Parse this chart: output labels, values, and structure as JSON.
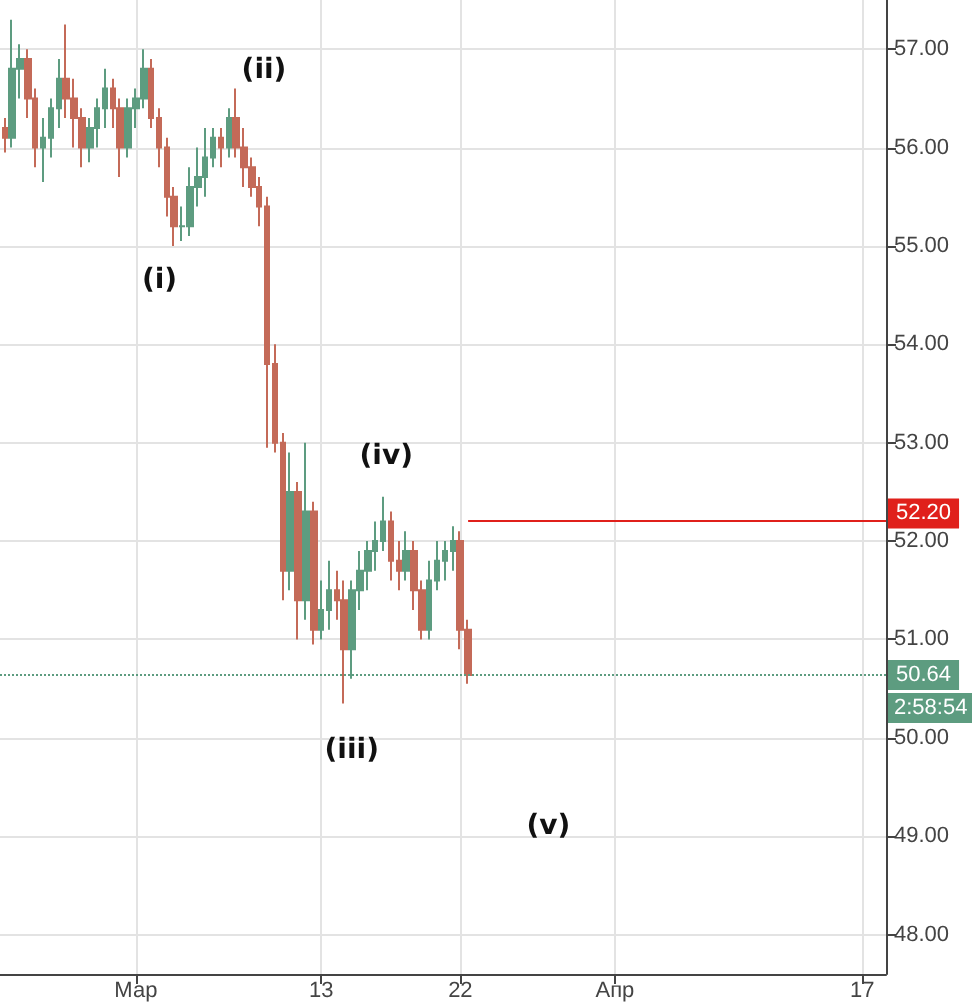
{
  "chart_data": {
    "type": "candlestick",
    "x": [
      "--02-20T12:00",
      "--02-21T00:00",
      "--02-21T12:00",
      "--02-22T00:00",
      "--02-22T12:00",
      "--02-23T00:00",
      "--02-23T12:00",
      "--02-24T00:00",
      "--02-24T12:00",
      "--02-25T00:00",
      "--02-25T12:00",
      "--02-26T00:00",
      "--02-26T12:00",
      "--02-27T00:00",
      "--02-27T12:00",
      "--02-28T00:00",
      "--02-28T12:00",
      "--03-01T00:00",
      "--03-01T12:00",
      "--03-02T00:00",
      "--03-02T12:00",
      "--03-03T00:00",
      "--03-03T12:00",
      "--03-04T00:00",
      "--03-04T12:00",
      "--03-05T00:00",
      "--03-05T12:00",
      "--03-06T00:00",
      "--03-06T12:00",
      "--03-07T00:00",
      "--03-07T12:00",
      "--03-08T00:00",
      "--03-08T12:00",
      "--03-09T00:00",
      "--03-09T12:00",
      "--03-10T00:00",
      "--03-10T12:00",
      "--03-11T00:00",
      "--03-11T12:00",
      "--03-12T00:00",
      "--03-12T12:00",
      "--03-13T00:00",
      "--03-13T12:00",
      "--03-14T00:00",
      "--03-14T12:00",
      "--03-15T00:00",
      "--03-15T12:00",
      "--03-16T00:00",
      "--03-16T12:00",
      "--03-17T00:00",
      "--03-17T12:00",
      "--03-18T00:00",
      "--03-18T12:00",
      "--03-19T00:00",
      "--03-19T12:00",
      "--03-20T00:00",
      "--03-20T12:00",
      "--03-21T00:00",
      "--03-21T12:00",
      "--03-22T00:00",
      "--03-22T12:00"
    ],
    "ohlc": [
      [
        56.2,
        56.3,
        55.95,
        56.1
      ],
      [
        56.1,
        57.3,
        56.0,
        56.8
      ],
      [
        56.8,
        57.05,
        56.5,
        56.9
      ],
      [
        56.9,
        57.0,
        56.3,
        56.5
      ],
      [
        56.5,
        56.6,
        55.8,
        56.0
      ],
      [
        56.0,
        56.3,
        55.65,
        56.1
      ],
      [
        56.1,
        56.5,
        55.9,
        56.4
      ],
      [
        56.4,
        56.9,
        56.2,
        56.7
      ],
      [
        56.7,
        57.25,
        56.3,
        56.5
      ],
      [
        56.5,
        56.7,
        56.0,
        56.3
      ],
      [
        56.3,
        56.4,
        55.8,
        56.0
      ],
      [
        56.0,
        56.3,
        55.85,
        56.2
      ],
      [
        56.2,
        56.5,
        56.0,
        56.4
      ],
      [
        56.4,
        56.8,
        56.2,
        56.6
      ],
      [
        56.6,
        56.7,
        56.2,
        56.4
      ],
      [
        56.4,
        56.5,
        55.7,
        56.0
      ],
      [
        56.0,
        56.5,
        55.9,
        56.4
      ],
      [
        56.4,
        56.6,
        56.2,
        56.5
      ],
      [
        56.5,
        57.0,
        56.4,
        56.8
      ],
      [
        56.8,
        56.9,
        56.2,
        56.3
      ],
      [
        56.3,
        56.4,
        55.8,
        56.0
      ],
      [
        56.0,
        56.1,
        55.3,
        55.5
      ],
      [
        55.5,
        55.6,
        55.0,
        55.2
      ],
      [
        55.2,
        55.4,
        55.05,
        55.2
      ],
      [
        55.2,
        55.8,
        55.1,
        55.6
      ],
      [
        55.6,
        56.0,
        55.4,
        55.7
      ],
      [
        55.7,
        56.2,
        55.5,
        55.9
      ],
      [
        55.9,
        56.2,
        55.8,
        56.1
      ],
      [
        56.1,
        56.2,
        55.8,
        56.0
      ],
      [
        56.0,
        56.4,
        55.9,
        56.3
      ],
      [
        56.3,
        56.6,
        55.9,
        56.0
      ],
      [
        56.0,
        56.2,
        55.6,
        55.8
      ],
      [
        55.8,
        55.9,
        55.5,
        55.6
      ],
      [
        55.6,
        55.7,
        55.2,
        55.4
      ],
      [
        55.4,
        55.5,
        52.95,
        53.8
      ],
      [
        53.8,
        54.0,
        52.9,
        53.0
      ],
      [
        53.0,
        53.1,
        51.4,
        51.7
      ],
      [
        51.7,
        52.9,
        51.5,
        52.5
      ],
      [
        52.5,
        52.6,
        51.0,
        51.4
      ],
      [
        51.4,
        53.0,
        51.2,
        52.3
      ],
      [
        52.3,
        52.4,
        50.95,
        51.1
      ],
      [
        51.1,
        51.6,
        51.0,
        51.3
      ],
      [
        51.3,
        51.8,
        51.1,
        51.5
      ],
      [
        51.5,
        51.7,
        51.2,
        51.4
      ],
      [
        51.4,
        51.6,
        50.35,
        50.9
      ],
      [
        50.9,
        51.6,
        50.6,
        51.5
      ],
      [
        51.5,
        51.9,
        51.3,
        51.7
      ],
      [
        51.7,
        52.0,
        51.5,
        51.9
      ],
      [
        51.9,
        52.2,
        51.7,
        52.0
      ],
      [
        52.0,
        52.45,
        51.9,
        52.2
      ],
      [
        52.2,
        52.3,
        51.6,
        51.8
      ],
      [
        51.8,
        52.0,
        51.5,
        51.7
      ],
      [
        51.7,
        52.1,
        51.6,
        51.9
      ],
      [
        51.9,
        52.0,
        51.3,
        51.5
      ],
      [
        51.5,
        51.6,
        51.0,
        51.1
      ],
      [
        51.1,
        51.8,
        51.0,
        51.6
      ],
      [
        51.6,
        52.0,
        51.5,
        51.8
      ],
      [
        51.8,
        52.0,
        51.6,
        51.9
      ],
      [
        51.9,
        52.15,
        51.7,
        52.0
      ],
      [
        52.0,
        52.1,
        50.9,
        51.1
      ],
      [
        51.1,
        51.2,
        50.55,
        50.64
      ]
    ],
    "colors": [
      "#c46a58",
      "#5d9c80",
      "#5d9c80",
      "#c46a58",
      "#c46a58",
      "#5d9c80",
      "#5d9c80",
      "#5d9c80",
      "#c46a58",
      "#c46a58",
      "#c46a58",
      "#5d9c80",
      "#5d9c80",
      "#5d9c80",
      "#c46a58",
      "#c46a58",
      "#5d9c80",
      "#5d9c80",
      "#5d9c80",
      "#c46a58",
      "#c46a58",
      "#c46a58",
      "#c46a58",
      "#5d9c80",
      "#5d9c80",
      "#5d9c80",
      "#5d9c80",
      "#5d9c80",
      "#c46a58",
      "#5d9c80",
      "#c46a58",
      "#c46a58",
      "#c46a58",
      "#c46a58",
      "#c46a58",
      "#c46a58",
      "#c46a58",
      "#5d9c80",
      "#c46a58",
      "#5d9c80",
      "#c46a58",
      "#5d9c80",
      "#5d9c80",
      "#c46a58",
      "#c46a58",
      "#5d9c80",
      "#5d9c80",
      "#5d9c80",
      "#5d9c80",
      "#5d9c80",
      "#c46a58",
      "#c46a58",
      "#5d9c80",
      "#c46a58",
      "#c46a58",
      "#5d9c80",
      "#5d9c80",
      "#5d9c80",
      "#5d9c80",
      "#c46a58",
      "#c46a58"
    ],
    "xlim": [
      "--02-20T05:00",
      "--04-18T13:00"
    ],
    "xticks": [
      {
        "value": "--03-01",
        "label": "Мар"
      },
      {
        "value": "--03-13",
        "label": "13"
      },
      {
        "value": "--03-22",
        "label": "22"
      },
      {
        "value": "--04-01",
        "label": "Апр"
      },
      {
        "value": "--04-17",
        "label": "17"
      }
    ],
    "ylim": [
      47.6,
      57.5
    ],
    "yticks": [
      {
        "value": 48,
        "label": "48.00"
      },
      {
        "value": 49,
        "label": "49.00"
      },
      {
        "value": 50,
        "label": "50.00"
      },
      {
        "value": 51,
        "label": "51.00"
      },
      {
        "value": 52,
        "label": "52.00"
      },
      {
        "value": 53,
        "label": "53.00"
      },
      {
        "value": 54,
        "label": "54.00"
      },
      {
        "value": 55,
        "label": "55.00"
      },
      {
        "value": 56,
        "label": "56.00"
      },
      {
        "value": 57,
        "label": "57.00"
      }
    ],
    "grid": true,
    "ref_lines": [
      {
        "axis": "y",
        "value": 52.2,
        "label": "52.20",
        "color": "#e0201b",
        "line_style": "solid"
      },
      {
        "axis": "y",
        "value": 50.64,
        "label": "50.64",
        "color": "#5d9c80",
        "line_style": "dotted"
      }
    ],
    "annotations": [
      "(i)",
      "(ii)",
      "(iii)",
      "(iv)",
      "(v)",
      "2:58:54"
    ]
  }
}
